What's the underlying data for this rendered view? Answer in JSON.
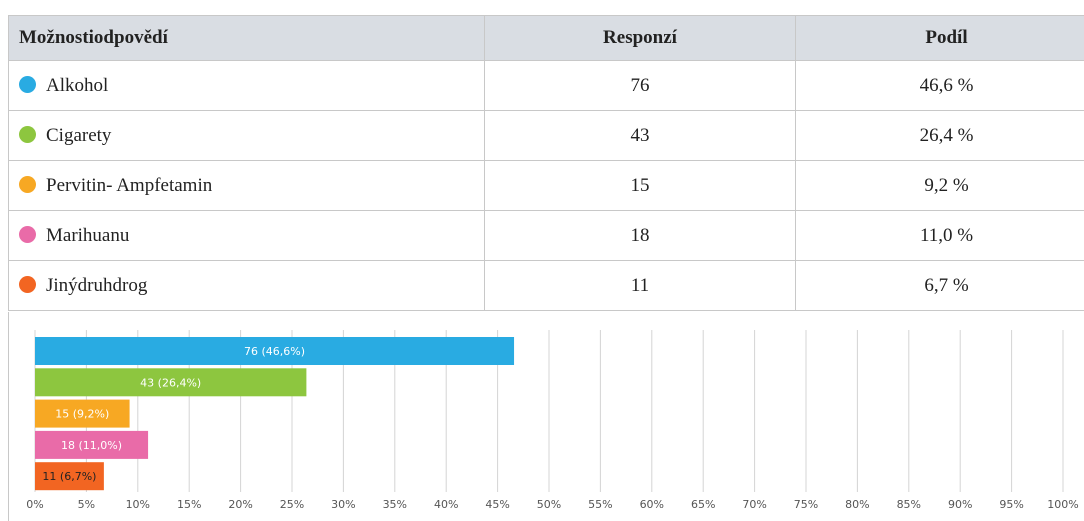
{
  "table": {
    "header": [
      "Možnostiodpovědí",
      "Responzí",
      "Podíl"
    ],
    "rows": [
      [
        "Alkohol",
        76,
        "46,6 %"
      ],
      [
        "Cigarety",
        43,
        "26,4 %"
      ],
      [
        "Pervitin- Ampfetamin",
        15,
        "9,2 %"
      ],
      [
        "Marihuanu",
        18,
        "11,0 %"
      ],
      [
        "Jinýdruhdrog",
        11,
        "6,7 %"
      ]
    ]
  },
  "chart_data": {
    "type": "hbar",
    "values": [
      46.6,
      26.4,
      9.2,
      11.0,
      6.7
    ],
    "value_labels": [
      "76 (46,6%)",
      "43 (26,4%)",
      "15 (9,2%)",
      "18 (11,0%)",
      "11 (6,7%)"
    ],
    "colors": [
      "#29abe2",
      "#8dc63f",
      "#f7a823",
      "#e96ba8",
      "#f26522"
    ],
    "xlim": [
      0,
      100
    ],
    "xticks": [
      {
        "value": 0,
        "label": "0%"
      },
      {
        "value": 5,
        "label": "5%"
      },
      {
        "value": 10,
        "label": "10%"
      },
      {
        "value": 15,
        "label": "15%"
      },
      {
        "value": 20,
        "label": "20%"
      },
      {
        "value": 25,
        "label": "25%"
      },
      {
        "value": 30,
        "label": "30%"
      },
      {
        "value": 35,
        "label": "35%"
      },
      {
        "value": 40,
        "label": "40%"
      },
      {
        "value": 45,
        "label": "45%"
      },
      {
        "value": 50,
        "label": "50%"
      },
      {
        "value": 55,
        "label": "55%"
      },
      {
        "value": 60,
        "label": "60%"
      },
      {
        "value": 65,
        "label": "65%"
      },
      {
        "value": 70,
        "label": "70%"
      },
      {
        "value": 75,
        "label": "75%"
      },
      {
        "value": 80,
        "label": "80%"
      },
      {
        "value": 85,
        "label": "85%"
      },
      {
        "value": 90,
        "label": "90%"
      },
      {
        "value": 95,
        "label": "95%"
      },
      {
        "value": 100,
        "label": "100%"
      }
    ],
    "grid": true
  }
}
